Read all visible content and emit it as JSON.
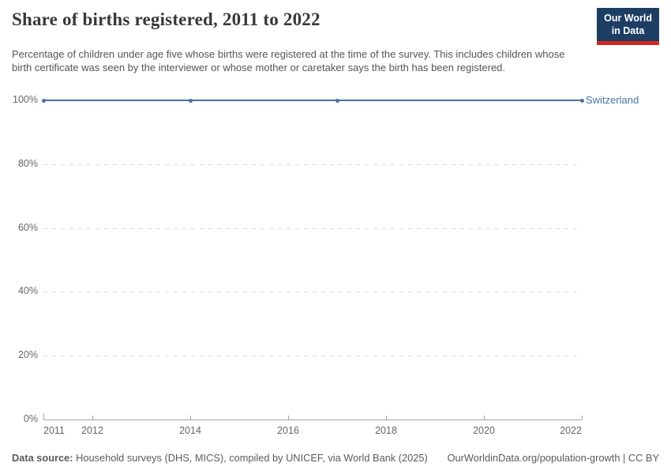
{
  "header": {
    "title": "Share of births registered, 2011 to 2022",
    "subtitle": "Percentage of children under age five whose births were registered at the time of the survey. This includes children whose birth certificate was seen by the interviewer or whose mother or caretaker says the birth has been registered.",
    "logo": {
      "line1": "Our World",
      "line2": "in Data"
    }
  },
  "footer": {
    "source_label": "Data source:",
    "source_text": " Household surveys (DHS, MICS), compiled by UNICEF, via World Bank (2025)",
    "credit": "OurWorldinData.org/population-growth | CC BY"
  },
  "colors": {
    "line": "#4c6fa5",
    "entity_label": "#4470a6",
    "logo_bg": "#1d3d63",
    "logo_stripe": "#d12a20",
    "grid": "#dcdcdc",
    "axis": "#a5a5a5",
    "tick_label": "#666666"
  },
  "chart_data": {
    "type": "line",
    "title": "Share of births registered, 2011 to 2022",
    "xlabel": "",
    "ylabel": "",
    "xlim": [
      2011,
      2022
    ],
    "ylim": [
      0,
      100
    ],
    "xticks": [
      2011,
      2012,
      2014,
      2016,
      2018,
      2020,
      2022
    ],
    "yticks": [
      0,
      20,
      40,
      60,
      80,
      100
    ],
    "ytick_suffix": "%",
    "grid": "horizontal-dashed",
    "legend_position": "right-of-line-end",
    "series": [
      {
        "name": "Switzerland",
        "unit": "%",
        "points": [
          {
            "year": 2011,
            "value": 100
          },
          {
            "year": 2014,
            "value": 100
          },
          {
            "year": 2017,
            "value": 100
          },
          {
            "year": 2022,
            "value": 100
          }
        ]
      }
    ]
  }
}
